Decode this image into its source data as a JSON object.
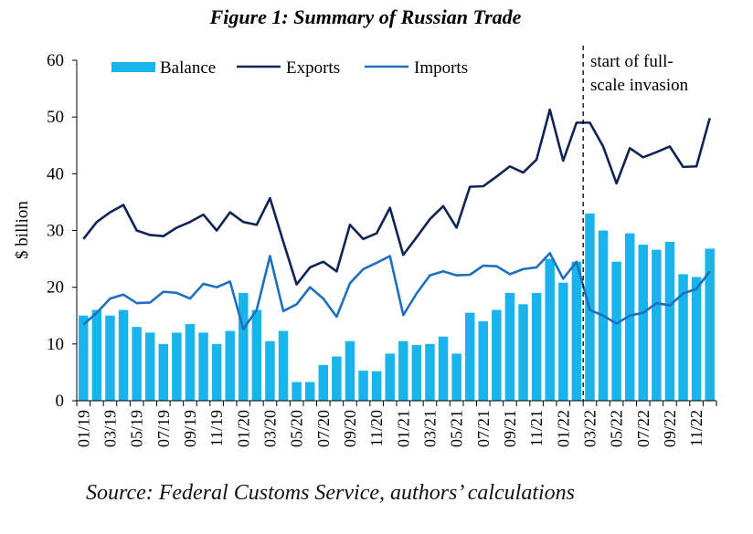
{
  "title": "Figure 1: Summary of Russian Trade",
  "source": "Source: Federal Customs Service, authors’ calculations",
  "colors": {
    "balance": "#19b4ec",
    "exports": "#0f2455",
    "imports": "#1f6fbf"
  },
  "chart_data": {
    "type": "bar+line",
    "ylabel": "$ billion",
    "ylim": [
      0,
      60
    ],
    "yticks": [
      0,
      10,
      20,
      30,
      40,
      50,
      60
    ],
    "months": [
      "01/19",
      "02/19",
      "03/19",
      "04/19",
      "05/19",
      "06/19",
      "07/19",
      "08/19",
      "09/19",
      "10/19",
      "11/19",
      "12/19",
      "01/20",
      "02/20",
      "03/20",
      "04/20",
      "05/20",
      "06/20",
      "07/20",
      "08/20",
      "09/20",
      "10/20",
      "11/20",
      "12/20",
      "01/21",
      "02/21",
      "03/21",
      "04/21",
      "05/21",
      "06/21",
      "07/21",
      "08/21",
      "09/21",
      "10/21",
      "11/21",
      "12/21",
      "01/22",
      "02/22",
      "03/22",
      "04/22",
      "05/22",
      "06/22",
      "07/22",
      "08/22",
      "09/22",
      "10/22",
      "11/22",
      "12/22"
    ],
    "xtick_labels": [
      "01/19",
      "03/19",
      "05/19",
      "07/19",
      "09/19",
      "11/19",
      "01/20",
      "03/20",
      "05/20",
      "07/20",
      "09/20",
      "11/20",
      "01/21",
      "03/21",
      "05/21",
      "07/21",
      "09/21",
      "11/21",
      "01/22",
      "03/22",
      "05/22",
      "07/22",
      "09/22",
      "11/22"
    ],
    "legend": {
      "balance": "Balance",
      "exports": "Exports",
      "imports": "Imports"
    },
    "series": [
      {
        "name": "Balance",
        "kind": "bar",
        "values": [
          15,
          16,
          15,
          16,
          13,
          12,
          10,
          12,
          13.5,
          12,
          10,
          12.3,
          19,
          16,
          10.5,
          12.3,
          3.3,
          3.3,
          6.3,
          7.8,
          10.5,
          5.3,
          5.2,
          8.3,
          10.5,
          9.8,
          10,
          11.3,
          8.3,
          15.5,
          14,
          16,
          19,
          17,
          19,
          25,
          20.8,
          24.5,
          33,
          30,
          24.5,
          29.5,
          27.5,
          26.6,
          28,
          22.3,
          21.8,
          26.8
        ]
      },
      {
        "name": "Exports",
        "kind": "line",
        "values": [
          28.5,
          31.5,
          33.2,
          34.5,
          30,
          29.2,
          29,
          30.5,
          31.5,
          32.8,
          30,
          33.2,
          31.5,
          31,
          35.7,
          28,
          20.5,
          23.5,
          24.5,
          22.8,
          31,
          28.5,
          29.5,
          34,
          25.7,
          28.8,
          32,
          34.3,
          30.5,
          37.7,
          37.8,
          39.5,
          41.3,
          40.2,
          42.5,
          51.3,
          42.3,
          49,
          49,
          44.8,
          38.3,
          44.5,
          42.9,
          43.8,
          44.8,
          41.2,
          41.3,
          49.8
        ]
      },
      {
        "name": "Imports",
        "kind": "line",
        "values": [
          13.4,
          15.5,
          18,
          18.7,
          17.2,
          17.3,
          19.2,
          19,
          18,
          20.6,
          20,
          21,
          12.6,
          16,
          25.5,
          15.8,
          17,
          20,
          18,
          14.8,
          20.7,
          23.2,
          24.3,
          25.5,
          15.1,
          18.9,
          22.1,
          22.8,
          22.1,
          22.2,
          23.8,
          23.7,
          22.3,
          23.2,
          23.5,
          26,
          21.5,
          24.5,
          16,
          15,
          13.6,
          15,
          15.5,
          17.2,
          16.8,
          18.9,
          19.7,
          22.8
        ]
      }
    ],
    "annotation": {
      "text_line1": "start of full-",
      "text_line2": "scale invasion",
      "after_month": "02/22"
    }
  }
}
